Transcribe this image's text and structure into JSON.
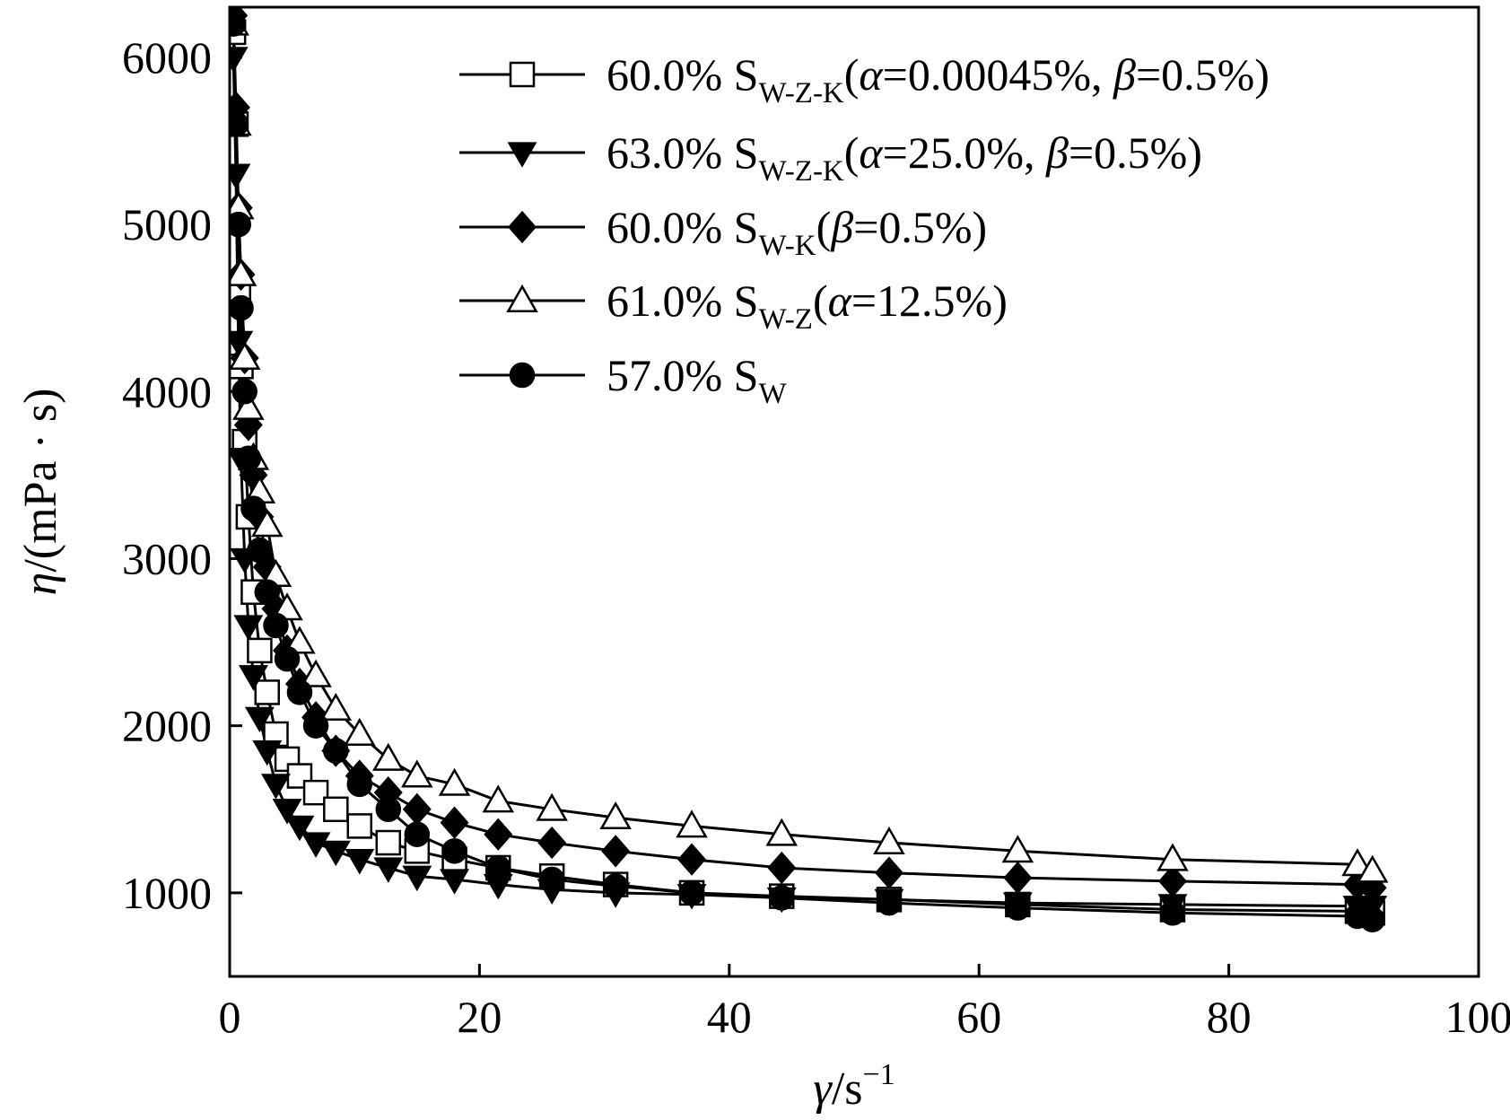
{
  "chart_data": {
    "type": "line",
    "xlabel": "γ/s⁻¹",
    "ylabel": "η/(mPa · s)",
    "xlim": [
      0,
      100
    ],
    "ylim": [
      500,
      6300
    ],
    "x_ticks": [
      0,
      20,
      40,
      60,
      80,
      100
    ],
    "y_ticks": [
      1000,
      2000,
      3000,
      4000,
      5000,
      6000
    ],
    "grid": false,
    "legend_position": "top-right",
    "series": [
      {
        "name": "60.0% S_W-Z-K(α=0.00045%, β=0.5%)",
        "label": {
          "pre": "60.0% S",
          "sub": "W-Z-K",
          "post": "(α=0.00045%, β=0.5%)"
        },
        "marker": "square-open",
        "x": [
          0.3,
          0.5,
          0.7,
          0.9,
          1.2,
          1.5,
          1.9,
          2.4,
          3.0,
          3.7,
          4.6,
          5.6,
          6.9,
          8.5,
          10.4,
          12.7,
          15.0,
          18.0,
          21.5,
          25.8,
          30.9,
          37.0,
          44.2,
          52.8,
          63.1,
          75.5,
          90.3,
          91.5
        ],
        "y": [
          6150,
          5600,
          4600,
          4150,
          3700,
          3250,
          2800,
          2450,
          2200,
          1950,
          1800,
          1700,
          1600,
          1500,
          1400,
          1300,
          1250,
          1200,
          1150,
          1100,
          1050,
          1000,
          980,
          960,
          930,
          900,
          890,
          880
        ]
      },
      {
        "name": "63.0% S_W-Z-K(α=25.0%, β=0.5%)",
        "label": {
          "pre": "63.0% S",
          "sub": "W-Z-K",
          "post": "(α=25.0%, β=0.5%)"
        },
        "marker": "triangle-down-filled",
        "x": [
          0.3,
          0.5,
          0.7,
          0.9,
          1.2,
          1.5,
          1.9,
          2.4,
          3.0,
          3.7,
          4.6,
          5.6,
          6.9,
          8.5,
          10.4,
          12.7,
          15.0,
          18.0,
          21.5,
          25.8,
          30.9,
          37.0,
          44.2,
          52.8,
          63.1,
          75.5,
          90.3,
          91.5
        ],
        "y": [
          6000,
          5300,
          4300,
          3600,
          3000,
          2600,
          2300,
          2050,
          1850,
          1650,
          1500,
          1400,
          1300,
          1250,
          1200,
          1150,
          1100,
          1080,
          1050,
          1020,
          1000,
          990,
          970,
          960,
          940,
          930,
          920,
          920
        ]
      },
      {
        "name": "60.0% S_W-K(β=0.5%)",
        "label": {
          "pre": "60.0% S",
          "sub": "W-K",
          "post": "(β=0.5%)"
        },
        "marker": "diamond-filled",
        "x": [
          0.3,
          0.5,
          0.7,
          0.9,
          1.2,
          1.5,
          1.9,
          2.4,
          3.0,
          3.7,
          4.6,
          5.6,
          6.9,
          8.5,
          10.4,
          12.7,
          15.0,
          18.0,
          21.5,
          25.8,
          30.9,
          37.0,
          44.2,
          52.8,
          63.1,
          75.5,
          90.3,
          91.5
        ],
        "y": [
          6250,
          5700,
          5100,
          4700,
          4200,
          3800,
          3500,
          3250,
          2950,
          2700,
          2450,
          2250,
          2050,
          1850,
          1700,
          1600,
          1500,
          1420,
          1350,
          1300,
          1250,
          1200,
          1150,
          1120,
          1090,
          1070,
          1050,
          1030
        ]
      },
      {
        "name": "61.0% S_W-Z(α=12.5%)",
        "label": {
          "pre": "61.0% S",
          "sub": "W-Z",
          "post": "(α=12.5%)"
        },
        "marker": "triangle-up-open",
        "x": [
          0.3,
          0.5,
          0.7,
          0.9,
          1.2,
          1.5,
          1.9,
          2.4,
          3.0,
          3.7,
          4.6,
          5.6,
          6.9,
          8.5,
          10.4,
          12.7,
          15.0,
          18.0,
          21.5,
          25.8,
          30.9,
          37.0,
          44.2,
          52.8,
          63.1,
          75.5,
          90.3,
          91.5
        ],
        "y": [
          6200,
          5600,
          5100,
          4700,
          4200,
          3900,
          3600,
          3400,
          3200,
          2900,
          2700,
          2500,
          2300,
          2100,
          1950,
          1800,
          1700,
          1650,
          1550,
          1500,
          1450,
          1400,
          1350,
          1300,
          1250,
          1200,
          1170,
          1130
        ]
      },
      {
        "name": "57.0% S_W",
        "label": {
          "pre": "57.0% S",
          "sub": "W",
          "post": ""
        },
        "marker": "circle-filled",
        "x": [
          0.3,
          0.5,
          0.7,
          0.9,
          1.2,
          1.5,
          1.9,
          2.4,
          3.0,
          3.7,
          4.6,
          5.6,
          6.9,
          8.5,
          10.4,
          12.7,
          15.0,
          18.0,
          21.5,
          25.8,
          30.9,
          37.0,
          44.2,
          52.8,
          63.1,
          75.5,
          90.3,
          91.5
        ],
        "y": [
          6200,
          5600,
          5000,
          4500,
          4000,
          3600,
          3300,
          3050,
          2800,
          2600,
          2400,
          2200,
          2000,
          1850,
          1650,
          1500,
          1350,
          1250,
          1150,
          1080,
          1040,
          1000,
          970,
          940,
          910,
          880,
          860,
          840
        ]
      }
    ]
  }
}
